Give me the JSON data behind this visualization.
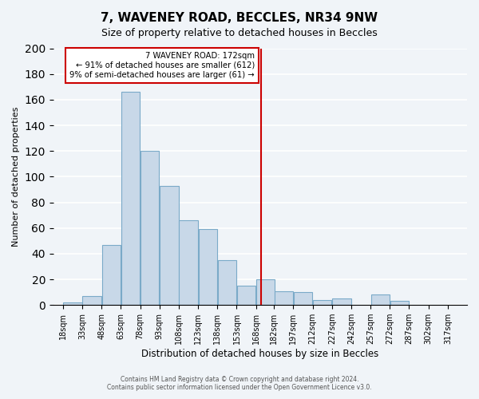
{
  "title": "7, WAVENEY ROAD, BECCLES, NR34 9NW",
  "subtitle": "Size of property relative to detached houses in Beccles",
  "xlabel": "Distribution of detached houses by size in Beccles",
  "ylabel": "Number of detached properties",
  "bar_color": "#c8d8e8",
  "bar_edgecolor": "#7aaac8",
  "bins": [
    18,
    33,
    48,
    63,
    78,
    93,
    108,
    123,
    138,
    153,
    168,
    182,
    197,
    212,
    227,
    242,
    257,
    272,
    287,
    302,
    317
  ],
  "counts": [
    2,
    7,
    47,
    166,
    120,
    93,
    66,
    59,
    35,
    15,
    20,
    11,
    10,
    4,
    5,
    0,
    8,
    3,
    0,
    0
  ],
  "tick_labels": [
    "18sqm",
    "33sqm",
    "48sqm",
    "63sqm",
    "78sqm",
    "93sqm",
    "108sqm",
    "123sqm",
    "138sqm",
    "153sqm",
    "168sqm",
    "182sqm",
    "197sqm",
    "212sqm",
    "227sqm",
    "242sqm",
    "257sqm",
    "272sqm",
    "287sqm",
    "302sqm",
    "317sqm"
  ],
  "vline_x": 172,
  "vline_color": "#cc0000",
  "annotation_title": "7 WAVENEY ROAD: 172sqm",
  "annotation_line1": "← 91% of detached houses are smaller (612)",
  "annotation_line2": "9% of semi-detached houses are larger (61) →",
  "annotation_box_color": "#ffffff",
  "annotation_box_edgecolor": "#cc0000",
  "ylim": [
    0,
    200
  ],
  "yticks": [
    0,
    20,
    40,
    60,
    80,
    100,
    120,
    140,
    160,
    180,
    200
  ],
  "footer_line1": "Contains HM Land Registry data © Crown copyright and database right 2024.",
  "footer_line2": "Contains public sector information licensed under the Open Government Licence v3.0.",
  "bg_color": "#f0f4f8",
  "grid_color": "#ffffff",
  "figsize": [
    6.0,
    5.0
  ],
  "dpi": 100
}
